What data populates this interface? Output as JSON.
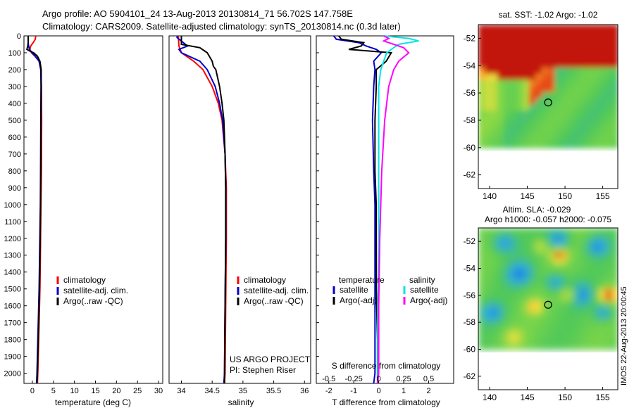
{
  "header": {
    "line1": "Argo profile: AO 5904101_24 13-Aug-2013 20130814_71 56.702S 147.758E",
    "line2": "Climatology: CARS2009. Satellite-adjusted climatology: synTS_20130814.nc (0.3d later)"
  },
  "colors": {
    "climatology": "#ff0000",
    "satellite": "#0000cc",
    "argo": "#000000",
    "sal_satellite": "#00e5e5",
    "sal_argo": "#ff00ff",
    "map_land_band": "#b00000",
    "map_mask": "#ffffff"
  },
  "side_stamp": "IMOS 22-Aug-2013 20:00:45",
  "chart_data": [
    {
      "id": "temperature",
      "type": "line",
      "xlabel": "temperature (deg C)",
      "ylabel": "",
      "xlim": [
        -2,
        31
      ],
      "ylim": [
        2060,
        0
      ],
      "xticks": [
        0,
        5,
        10,
        15,
        20,
        25,
        30
      ],
      "yticks": [
        0,
        100,
        200,
        300,
        400,
        500,
        600,
        700,
        800,
        900,
        1000,
        1100,
        1200,
        1300,
        1400,
        1500,
        1600,
        1700,
        1800,
        1900,
        2000
      ],
      "legend": [
        "climatology",
        "satellite-adj. clim.",
        "Argo(..raw -QC)"
      ],
      "series": [
        {
          "name": "climatology",
          "color": "#ff0000",
          "depth": [
            0,
            20,
            40,
            60,
            80,
            100,
            120,
            150,
            200,
            300,
            500,
            800,
            1000,
            1500,
            2000,
            2060
          ],
          "values": [
            0.8,
            0.7,
            0.2,
            -0.4,
            -0.6,
            -0.2,
            0.6,
            1.6,
            2.0,
            2.15,
            2.2,
            2.15,
            2.05,
            1.8,
            1.3,
            1.2
          ]
        },
        {
          "name": "satellite",
          "color": "#0000cc",
          "depth": [
            0,
            20,
            40,
            60,
            80,
            100,
            120,
            150,
            200,
            300,
            500,
            800,
            1000,
            1500,
            2000,
            2060
          ],
          "values": [
            -1.0,
            -1.0,
            -1.0,
            -0.9,
            -0.7,
            -0.1,
            0.7,
            1.6,
            2.0,
            2.05,
            2.0,
            1.95,
            1.9,
            1.6,
            1.1,
            1.0
          ]
        },
        {
          "name": "argo",
          "color": "#000000",
          "depth": [
            0,
            20,
            40,
            60,
            80,
            90,
            100,
            120,
            150,
            200,
            300,
            500,
            800,
            1000,
            1500,
            2000,
            2060
          ],
          "values": [
            -1.0,
            -1.0,
            -1.0,
            -1.1,
            -1.3,
            -0.6,
            0.3,
            1.2,
            1.8,
            2.1,
            2.1,
            2.05,
            2.0,
            1.95,
            1.7,
            1.2,
            1.1
          ]
        }
      ]
    },
    {
      "id": "salinity",
      "type": "line",
      "xlabel": "salinity",
      "xlim": [
        33.8,
        36.1
      ],
      "ylim": [
        2060,
        0
      ],
      "xticks": [
        34,
        34.5,
        35,
        35.5,
        36
      ],
      "xticklabels": [
        "34",
        "34.5",
        "35",
        "35.5",
        "36"
      ],
      "legend": [
        "climatology",
        "satellite-adj. clim.",
        "Argo(..raw -QC)"
      ],
      "annotation": [
        "US ARGO PROJECT",
        "PI: Stephen Riser"
      ],
      "series": [
        {
          "name": "climatology",
          "color": "#ff0000",
          "depth": [
            0,
            60,
            100,
            150,
            200,
            300,
            400,
            500,
            700,
            900,
            1200,
            1600,
            2000,
            2060
          ],
          "values": [
            33.95,
            33.96,
            34.0,
            34.2,
            34.35,
            34.5,
            34.6,
            34.66,
            34.71,
            34.73,
            34.73,
            34.72,
            34.71,
            34.7
          ]
        },
        {
          "name": "satellite",
          "color": "#0000cc",
          "depth": [
            0,
            10,
            60,
            80,
            100,
            150,
            200,
            300,
            400,
            500,
            700,
            900,
            1200,
            1600,
            2000,
            2060
          ],
          "values": [
            33.93,
            33.93,
            34.1,
            33.96,
            34.0,
            34.3,
            34.42,
            34.55,
            34.62,
            34.67,
            34.71,
            34.72,
            34.72,
            34.71,
            34.7,
            34.69
          ]
        },
        {
          "name": "argo",
          "color": "#000000",
          "depth": [
            0,
            10,
            50,
            70,
            100,
            150,
            180,
            200,
            300,
            400,
            500,
            700,
            900,
            1200,
            1600,
            2000,
            2060
          ],
          "values": [
            34.0,
            34.0,
            34.0,
            34.3,
            34.42,
            34.5,
            34.52,
            34.56,
            34.62,
            34.66,
            34.69,
            34.71,
            34.72,
            34.72,
            34.71,
            34.7,
            34.7
          ]
        }
      ]
    },
    {
      "id": "difference",
      "type": "line",
      "xlabel": "T difference from climatology",
      "x2label": "S difference from climatology",
      "xlim": [
        -2.5,
        3.0
      ],
      "x2lim": [
        -0.625,
        0.75
      ],
      "ylim": [
        2060,
        0
      ],
      "xticks": [
        -2,
        -1,
        0,
        1,
        2
      ],
      "x2ticks": [
        -0.5,
        -0.25,
        0,
        0.25,
        0.5
      ],
      "x2ticklabels": [
        "-0.5",
        "-0.25",
        "0",
        "0.25",
        "0.5"
      ],
      "legend_headers": [
        "temperature",
        "salinity"
      ],
      "legend": [
        "satellite",
        "Argo(-adj)",
        "satellite",
        "Argo(-adj)"
      ],
      "series": [
        {
          "name": "T satellite",
          "axis": "T",
          "color": "#0000cc",
          "depth": [
            0,
            20,
            40,
            60,
            80,
            100,
            150,
            200,
            300,
            500,
            800,
            1000,
            1500,
            2000,
            2060
          ],
          "values": [
            -1.8,
            -1.7,
            -0.8,
            -0.5,
            -0.1,
            0.1,
            -0.2,
            -0.15,
            -0.2,
            -0.25,
            -0.2,
            -0.15,
            -0.15,
            -0.15,
            -0.2
          ]
        },
        {
          "name": "T argo",
          "axis": "T",
          "color": "#000000",
          "depth": [
            0,
            20,
            40,
            60,
            80,
            100,
            150,
            200,
            300,
            500,
            800,
            1000,
            1500,
            1800,
            2000,
            2060
          ],
          "values": [
            -1.6,
            -1.5,
            -0.6,
            -0.7,
            -1.2,
            0.5,
            0.3,
            -0.1,
            -0.1,
            -0.15,
            -0.15,
            -0.1,
            -0.1,
            -0.05,
            -0.05,
            -0.05
          ]
        },
        {
          "name": "S satellite",
          "axis": "S",
          "color": "#00e5e5",
          "depth": [
            0,
            15,
            30,
            50,
            70,
            100,
            150,
            200,
            300,
            500,
            800,
            1200,
            1600,
            2000,
            2060
          ],
          "values": [
            0.05,
            0.3,
            0.4,
            0.2,
            0.15,
            0.08,
            0.05,
            0.02,
            0.0,
            0.0,
            0.0,
            0.0,
            -0.01,
            -0.01,
            -0.01
          ]
        },
        {
          "name": "S argo",
          "axis": "S",
          "color": "#ff00ff",
          "depth": [
            0,
            15,
            30,
            50,
            70,
            100,
            150,
            200,
            300,
            500,
            800,
            1200,
            1600,
            2000,
            2060
          ],
          "values": [
            0.05,
            0.1,
            0.05,
            0.15,
            0.25,
            0.3,
            0.2,
            0.15,
            0.1,
            0.06,
            0.03,
            0.01,
            0.0,
            0.0,
            -0.01
          ]
        }
      ]
    },
    {
      "id": "sst_map",
      "type": "heatmap",
      "title": "sat. SST: -1.02 Argo: -1.02",
      "xticks": [
        140,
        145,
        150,
        155
      ],
      "yticks": [
        -52,
        -54,
        -56,
        -58,
        -60,
        -62
      ],
      "xlim": [
        138.5,
        157
      ],
      "ylim": [
        -63,
        -51
      ],
      "marker": {
        "lon": 147.76,
        "lat": -56.7
      }
    },
    {
      "id": "sla_map",
      "type": "heatmap",
      "title": "Altim. SLA: -0.029",
      "subtitle": "Argo h1000: -0.057 h2000: -0.075",
      "xticks": [
        140,
        145,
        150,
        155
      ],
      "yticks": [
        -52,
        -54,
        -56,
        -58,
        -60,
        -62
      ],
      "xlim": [
        138.5,
        157
      ],
      "ylim": [
        -63,
        -51
      ],
      "marker": {
        "lon": 147.76,
        "lat": -56.7
      }
    }
  ]
}
